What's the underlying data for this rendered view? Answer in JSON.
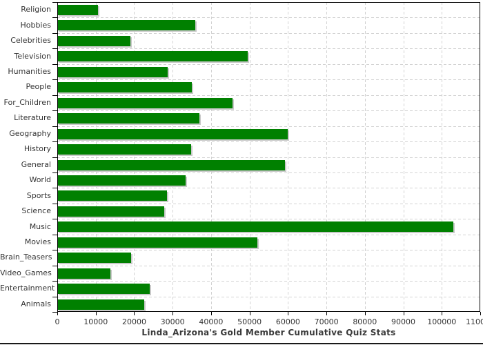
{
  "title": "Linda_Arizona's Gold Member Cumulative Quiz Stats",
  "colors": {
    "bar": "#008000",
    "bar_shadow": "#c9c9c9",
    "gridline": "#d2d2d2",
    "axis": "#000000",
    "label_text": "#333333",
    "title_text": "#3a3a3a",
    "background": "#ffffff",
    "bottom_rule": "#1a1a1a"
  },
  "chart_data": {
    "type": "bar",
    "orientation": "horizontal",
    "title": "Linda_Arizona's Gold Member Cumulative Quiz Stats",
    "xlabel": "",
    "ylabel": "",
    "xlim": [
      0,
      110000
    ],
    "grid": true,
    "legend": false,
    "categories": [
      "Religion",
      "Hobbies",
      "Celebrities",
      "Television",
      "Humanities",
      "People",
      "For_Children",
      "Literature",
      "Geography",
      "History",
      "General",
      "World",
      "Sports",
      "Science",
      "Music",
      "Movies",
      "Brain_Teasers",
      "Video_Games",
      "Entertainment",
      "Animals"
    ],
    "values": [
      10600,
      35800,
      19100,
      49600,
      28800,
      35000,
      45600,
      37000,
      60000,
      34800,
      59300,
      33400,
      28600,
      27900,
      103000,
      52100,
      19200,
      13800,
      24100,
      22600
    ],
    "x_ticks": [
      0,
      10000,
      20000,
      30000,
      40000,
      50000,
      60000,
      70000,
      80000,
      90000,
      100000,
      110000
    ],
    "x_tick_labels": [
      "0",
      "10000",
      "20000",
      "30000",
      "40000",
      "50000",
      "60000",
      "70000",
      "80000",
      "90000",
      "100000",
      "110000"
    ]
  }
}
